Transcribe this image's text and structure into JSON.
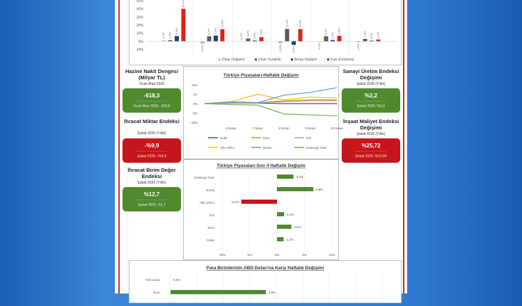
{
  "colors": {
    "green": "#4f8a2f",
    "red": "#c4161c",
    "page_border": "#c8262c"
  },
  "top_chart": {
    "type": "bar",
    "yticks": [
      "50%",
      "40%",
      "30%",
      "20%",
      "10%",
      "0%",
      "-10%"
    ],
    "ylim": [
      -10,
      50
    ],
    "series": [
      {
        "name": "Dolar Değişimi",
        "color": "#bfbfbf",
        "values": [
          1.2,
          -3.0,
          0.3,
          -2.6,
          -0.3,
          -1.4
        ],
        "labels": [
          "1,2%",
          "-3,0%",
          "0,3%",
          "-2,6%",
          "-0,3%",
          "-1,4%"
        ]
      },
      {
        "name": "Dolar Oynaklık",
        "color": "#595959",
        "values": [
          1.3,
          6.1,
          3.4,
          15.1,
          6.1,
          2.9
        ],
        "labels": [
          "1,3%",
          "6,1%",
          "3,4%",
          "15,1%",
          "6,1%",
          "2,9%"
        ]
      },
      {
        "name": "Borsa Değişim",
        "color": "#203f78",
        "values": [
          6.4,
          7.0,
          0.9,
          -4.5,
          1.5,
          0.7
        ],
        "labels": [
          "6,4%",
          "7,0%",
          "0,9%",
          "-4,5%",
          "1,5%",
          "0,7%"
        ]
      },
      {
        "name": "Faiz (Fonlama)",
        "color": "#e0201b",
        "values": [
          40.0,
          14.8,
          5.1,
          15.0,
          6.8,
          2.2
        ],
        "labels": [
          "40,0%",
          "14,8%",
          "5,1%",
          "15,0%",
          "6,8%",
          "2,2%"
        ]
      }
    ]
  },
  "left": [
    {
      "title": "Hazine Nakit Dengesi (Milyar TL)",
      "sub": "Ocak-Mart 2026",
      "value": "-618,3",
      "dashes": "-----------------",
      "prev": "Ocak-Mart 2025: -303,6",
      "color": "green"
    },
    {
      "title": "İhracat Miktar Endeksi",
      "sub": "Şubat 2026 (Yıllık)",
      "value": "-%9,9",
      "dashes": "-----------------",
      "prev": "Şubat 2025: -%4,3",
      "color": "red"
    },
    {
      "title": "İhracat Birim Değer Endeksi",
      "sub": "Şubat 2026 (Yıllık)",
      "value": "%12,7",
      "dashes": "-----------------",
      "prev": "Şubat 2025: %2,7",
      "color": "green"
    }
  ],
  "right": [
    {
      "title": "Sanayi Üretim Endeksi Değişimi",
      "sub": "Şubat 2026 (Yıllık)",
      "value": "%2,2",
      "dashes": "-----------------",
      "prev": "Şubat 2025: %2,0",
      "color": "green"
    },
    {
      "title": "İnşaat Maliyet Endeksi Değişimi",
      "sub": "Şubat 2026 (Yıllık)",
      "value": "%25,72",
      "dashes": "-----------------",
      "prev": "Şubat 2025: %23,84",
      "color": "red"
    }
  ],
  "chart_data": [
    {
      "type": "line",
      "title": "Türkiye Piyasaları-Haftalık Değişim",
      "categories": [
        "",
        "6 Nisan",
        "7 Nisan",
        "8 Nisan",
        "9 Nisan",
        "10 Nisan"
      ],
      "yticks": [
        "10%",
        "5%",
        "0%",
        "-5%",
        "-10%"
      ],
      "ylim": [
        -10,
        10
      ],
      "legend": "bottom",
      "series": [
        {
          "name": "Dolar",
          "color": "#2f5597",
          "values": [
            0,
            0.3,
            0.3,
            0,
            0,
            0
          ]
        },
        {
          "name": "Euro",
          "color": "#ed7d31",
          "values": [
            0,
            0.5,
            0.5,
            1.5,
            2,
            2
          ]
        },
        {
          "name": "K/S",
          "color": "#a5a5a5",
          "values": [
            0,
            0.5,
            0.5,
            1,
            1.5,
            1.5
          ]
        },
        {
          "name": "Altın (GR.)",
          "color": "#ffc000",
          "values": [
            0,
            1,
            5,
            2,
            3.5,
            3
          ]
        },
        {
          "name": "Borsa",
          "color": "#5b9bd5",
          "values": [
            0,
            1,
            0.5,
            4.5,
            6,
            8.5
          ]
        },
        {
          "name": "Gösterge Faizi",
          "color": "#70ad47",
          "values": [
            0,
            -0.5,
            -0.8,
            -5.5,
            -6,
            -6.5
          ]
        }
      ]
    },
    {
      "type": "bar",
      "orientation": "horizontal",
      "title": "Türkiye Piyasaları-Son 4 Haftalık Değişim",
      "categories": [
        "Gösterge Faizi",
        "Borsa",
        "Altın (GR.)",
        "K/S",
        "Euro",
        "Dolar"
      ],
      "values": [
        3.0,
        6.6,
        -6.5,
        1.3,
        2.6,
        1.2
      ],
      "labels": [
        "3,0%",
        "6,6%",
        "-6,5%",
        "1,3%",
        "2,6%",
        "1,2%"
      ],
      "xticks": [
        "-10%",
        "-5%",
        "0%",
        "5%",
        "10%"
      ],
      "xlim": [
        -10,
        10
      ]
    },
    {
      "type": "bar",
      "orientation": "horizontal",
      "title": "Para Birimlerinin ABD Doları'na Karşı Haftalık Değişimi",
      "categories": [
        "Türk Lirası",
        "Euro"
      ],
      "values": [
        0.0,
        1.8
      ],
      "labels": [
        "0,0%",
        "1,8%"
      ]
    }
  ]
}
